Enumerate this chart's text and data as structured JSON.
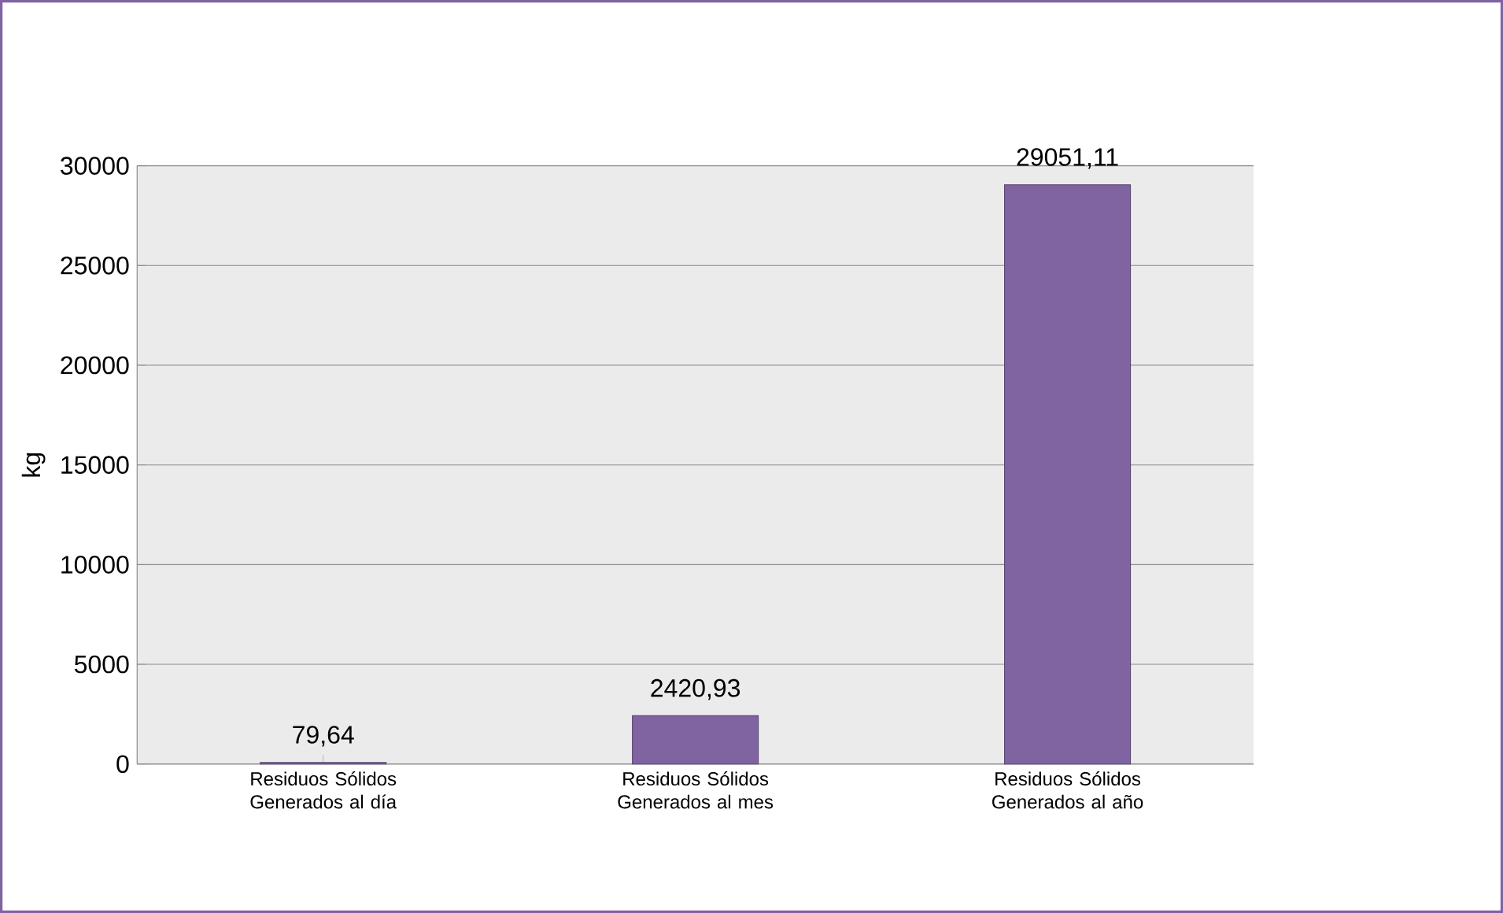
{
  "chart_data": {
    "type": "bar",
    "ylabel": "kg",
    "categories": [
      "Residuos Sólidos Generados al día",
      "Residuos Sólidos Generados al mes",
      "Residuos Sólidos Generados al año"
    ],
    "values": [
      79.64,
      2420.93,
      29051.11
    ],
    "value_labels": [
      "79,64",
      "2420,93",
      "29051,11"
    ],
    "color": "#8064a2",
    "ylim": [
      0,
      30000
    ],
    "yticks": [
      0,
      5000,
      10000,
      15000,
      20000,
      25000,
      30000
    ],
    "grid": "y"
  }
}
